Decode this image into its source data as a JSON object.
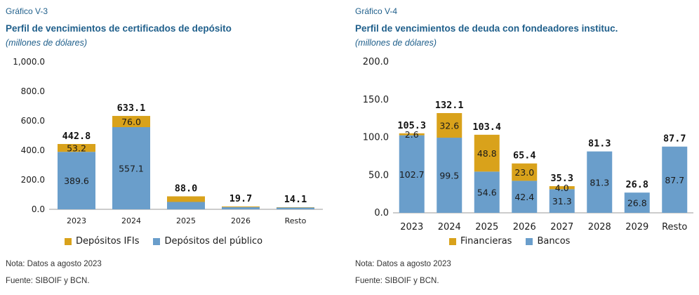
{
  "left": {
    "figure_label": "Gráfico V-3",
    "title": "Perfil de vencimientos de certificados de depósito",
    "unit": "(millones de dólares)",
    "note": "Nota: Datos a agosto 2023",
    "source": "Fuente: SIBOIF y BCN."
  },
  "right": {
    "figure_label": "Gráfico V-4",
    "title": "Perfil de vencimientos de deuda con fondeadores instituc.",
    "unit": "(millones de dólares)",
    "note": "Nota: Datos a agosto 2023",
    "source": "Fuente: SIBOIF y BCN."
  },
  "colors": {
    "blue": "#6a9ecb",
    "gold": "#d9a21b"
  },
  "chart_data": [
    {
      "type": "bar",
      "stacked": true,
      "title": "Perfil de vencimientos de certificados de depósito",
      "ylabel": "(millones de dólares)",
      "categories": [
        "2023",
        "2024",
        "2025",
        "2026",
        "Resto"
      ],
      "ylim": [
        0,
        1000
      ],
      "yticks": [
        "0.0",
        "200.0",
        "400.0",
        "600.0",
        "800.0",
        "1,000.0"
      ],
      "yticks_values": [
        0,
        200,
        400,
        600,
        800,
        1000
      ],
      "series": [
        {
          "name": "Depósitos del público",
          "values": [
            389.6,
            557.1,
            50.0,
            15.0,
            12.0
          ],
          "labels": [
            "389.6",
            "557.1",
            "",
            "",
            ""
          ]
        },
        {
          "name": "Depósitos IFIs",
          "values": [
            53.2,
            76.0,
            38.0,
            4.7,
            2.1
          ],
          "labels": [
            "53.2",
            "76.0",
            "",
            "",
            ""
          ]
        }
      ],
      "totals": [
        "442.8",
        "633.1",
        "88.0",
        "19.7",
        "14.1"
      ],
      "totals_values": [
        442.8,
        633.1,
        88.0,
        19.7,
        14.1
      ],
      "legend_order": [
        "Depósitos IFIs",
        "Depósitos del público"
      ],
      "legend": "bottom"
    },
    {
      "type": "bar",
      "stacked": true,
      "title": "Perfil de vencimientos de deuda con fondeadores instituc.",
      "ylabel": "(millones de dólares)",
      "categories": [
        "2023",
        "2024",
        "2025",
        "2026",
        "2027",
        "2028",
        "2029",
        "Resto"
      ],
      "ylim": [
        0,
        200
      ],
      "yticks": [
        "0.0",
        "50.0",
        "100.0",
        "150.0",
        "200.0"
      ],
      "yticks_values": [
        0,
        50,
        100,
        150,
        200
      ],
      "series": [
        {
          "name": "Bancos",
          "values": [
            102.7,
            99.5,
            54.6,
            42.4,
            31.3,
            81.3,
            26.8,
            87.7
          ],
          "labels": [
            "102.7",
            "99.5",
            "54.6",
            "42.4",
            "31.3",
            "81.3",
            "26.8",
            "87.7"
          ]
        },
        {
          "name": "Financieras",
          "values": [
            2.6,
            32.6,
            48.8,
            23.0,
            4.0,
            0,
            0,
            0
          ],
          "labels": [
            "2.6",
            "32.6",
            "48.8",
            "23.0",
            "4.0",
            "",
            "",
            ""
          ]
        }
      ],
      "totals": [
        "105.3",
        "132.1",
        "103.4",
        "65.4",
        "35.3",
        "81.3",
        "26.8",
        "87.7"
      ],
      "totals_values": [
        105.3,
        132.1,
        103.4,
        65.4,
        35.3,
        81.3,
        26.8,
        87.7
      ],
      "legend_order": [
        "Financieras",
        "Bancos"
      ],
      "legend": "bottom"
    }
  ]
}
